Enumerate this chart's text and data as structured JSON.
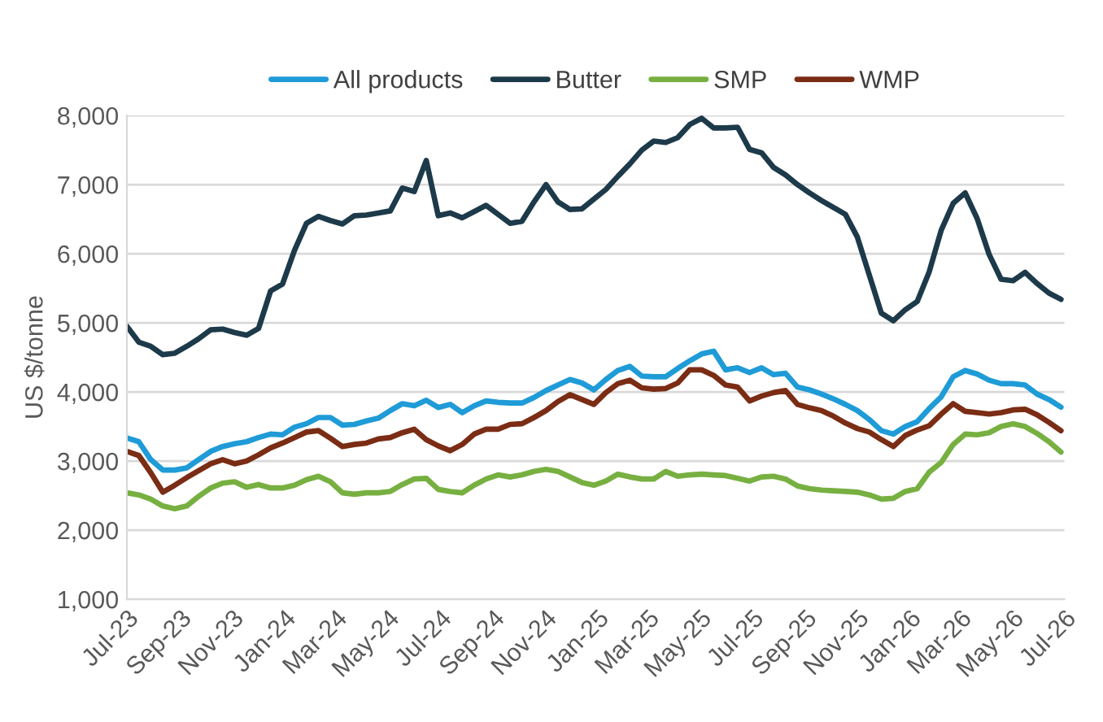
{
  "chart_data": {
    "type": "line",
    "ylabel": "US $/tonne",
    "x": [
      "2023-07-01",
      "2023-07-15",
      "2023-07-29",
      "2023-08-12",
      "2023-08-26",
      "2023-09-09",
      "2023-09-23",
      "2023-10-07",
      "2023-10-21",
      "2023-11-04",
      "2023-11-18",
      "2023-12-02",
      "2023-12-16",
      "2023-12-30",
      "2024-01-13",
      "2024-01-27",
      "2024-02-10",
      "2024-02-24",
      "2024-03-09",
      "2024-03-23",
      "2024-04-06",
      "2024-04-20",
      "2024-05-04",
      "2024-05-18",
      "2024-06-01",
      "2024-06-15",
      "2024-06-29",
      "2024-07-13",
      "2024-07-27",
      "2024-08-10",
      "2024-08-24",
      "2024-09-07",
      "2024-09-21",
      "2024-10-05",
      "2024-10-19",
      "2024-11-02",
      "2024-11-16",
      "2024-11-30",
      "2024-12-14",
      "2024-12-28",
      "2025-01-11",
      "2025-01-25",
      "2025-02-08",
      "2025-02-22",
      "2025-03-08",
      "2025-03-22",
      "2025-04-05",
      "2025-04-19",
      "2025-05-03",
      "2025-05-17",
      "2025-05-31",
      "2025-06-14",
      "2025-06-28",
      "2025-07-12",
      "2025-07-26",
      "2025-08-09",
      "2025-08-23",
      "2025-09-06",
      "2025-09-20",
      "2025-10-04",
      "2025-10-18",
      "2025-11-01",
      "2025-11-15",
      "2025-11-29",
      "2025-12-13",
      "2025-12-27",
      "2026-01-10",
      "2026-01-24",
      "2026-02-07",
      "2026-02-21",
      "2026-03-07",
      "2026-03-21",
      "2026-04-04",
      "2026-04-18",
      "2026-05-02",
      "2026-05-16",
      "2026-05-30",
      "2026-06-13",
      "2026-06-27"
    ],
    "series": [
      {
        "name": "All products",
        "color": "#1f9bd7",
        "values": [
          3335,
          3280,
          3020,
          2870,
          2870,
          2900,
          3020,
          3140,
          3210,
          3250,
          3280,
          3340,
          3390,
          3380,
          3490,
          3540,
          3630,
          3630,
          3520,
          3530,
          3580,
          3620,
          3730,
          3830,
          3800,
          3880,
          3775,
          3820,
          3700,
          3800,
          3870,
          3850,
          3840,
          3840,
          3920,
          4020,
          4100,
          4180,
          4130,
          4030,
          4180,
          4310,
          4370,
          4230,
          4220,
          4220,
          4340,
          4450,
          4550,
          4590,
          4320,
          4350,
          4280,
          4350,
          4250,
          4270,
          4070,
          4030,
          3970,
          3900,
          3820,
          3730,
          3600,
          3440,
          3390,
          3500,
          3570,
          3760,
          3930,
          4220,
          4310,
          4260,
          4170,
          4120,
          4120,
          4100,
          3970,
          3890,
          3780
        ]
      },
      {
        "name": "Butter",
        "color": "#1d3a4a",
        "values": [
          4950,
          4720,
          4660,
          4540,
          4560,
          4660,
          4770,
          4900,
          4910,
          4860,
          4820,
          4920,
          5460,
          5560,
          6050,
          6440,
          6540,
          6480,
          6430,
          6550,
          6560,
          6590,
          6620,
          6950,
          6900,
          7350,
          6550,
          6590,
          6520,
          6610,
          6700,
          6570,
          6440,
          6470,
          6750,
          7000,
          6750,
          6640,
          6650,
          6790,
          6930,
          7120,
          7300,
          7500,
          7630,
          7610,
          7680,
          7870,
          7960,
          7820,
          7820,
          7830,
          7510,
          7460,
          7250,
          7140,
          7000,
          6880,
          6770,
          6670,
          6570,
          6240,
          5690,
          5140,
          5030,
          5190,
          5310,
          5740,
          6340,
          6730,
          6880,
          6510,
          5990,
          5630,
          5610,
          5730,
          5570,
          5430,
          5340
        ]
      },
      {
        "name": "SMP",
        "color": "#77b041",
        "values": [
          2540,
          2510,
          2450,
          2350,
          2310,
          2350,
          2490,
          2610,
          2680,
          2700,
          2620,
          2660,
          2610,
          2610,
          2650,
          2730,
          2780,
          2700,
          2540,
          2520,
          2540,
          2540,
          2560,
          2660,
          2740,
          2750,
          2590,
          2560,
          2540,
          2650,
          2740,
          2800,
          2770,
          2800,
          2850,
          2880,
          2850,
          2770,
          2690,
          2650,
          2710,
          2810,
          2770,
          2740,
          2740,
          2850,
          2780,
          2800,
          2810,
          2800,
          2790,
          2750,
          2710,
          2770,
          2780,
          2740,
          2640,
          2600,
          2580,
          2570,
          2560,
          2550,
          2510,
          2450,
          2460,
          2560,
          2600,
          2840,
          2980,
          3240,
          3390,
          3380,
          3410,
          3500,
          3540,
          3500,
          3400,
          3280,
          3130
        ]
      },
      {
        "name": "WMP",
        "color": "#7b2c14",
        "values": [
          3140,
          3080,
          2830,
          2550,
          2650,
          2760,
          2860,
          2960,
          3020,
          2960,
          3000,
          3090,
          3190,
          3260,
          3340,
          3420,
          3440,
          3330,
          3210,
          3240,
          3260,
          3320,
          3340,
          3410,
          3460,
          3310,
          3220,
          3150,
          3240,
          3390,
          3460,
          3460,
          3530,
          3540,
          3630,
          3730,
          3860,
          3960,
          3890,
          3820,
          3990,
          4120,
          4170,
          4060,
          4040,
          4050,
          4130,
          4320,
          4320,
          4240,
          4100,
          4070,
          3870,
          3940,
          3990,
          4020,
          3820,
          3770,
          3730,
          3650,
          3550,
          3470,
          3420,
          3310,
          3210,
          3370,
          3450,
          3510,
          3680,
          3830,
          3720,
          3700,
          3680,
          3700,
          3740,
          3750,
          3670,
          3560,
          3440
        ]
      }
    ],
    "xlim": [
      "2023-07-01",
      "2026-07-01"
    ],
    "xticks": [
      {
        "value": "2023-07",
        "label": "Jul-23"
      },
      {
        "value": "2023-09",
        "label": "Sep-23"
      },
      {
        "value": "2023-11",
        "label": "Nov-23"
      },
      {
        "value": "2024-01",
        "label": "Jan-24"
      },
      {
        "value": "2024-03",
        "label": "Mar-24"
      },
      {
        "value": "2024-05",
        "label": "May-24"
      },
      {
        "value": "2024-07",
        "label": "Jul-24"
      },
      {
        "value": "2024-09",
        "label": "Sep-24"
      },
      {
        "value": "2024-11",
        "label": "Nov-24"
      },
      {
        "value": "2025-01",
        "label": "Jan-25"
      },
      {
        "value": "2025-03",
        "label": "Mar-25"
      },
      {
        "value": "2025-05",
        "label": "May-25"
      },
      {
        "value": "2025-07",
        "label": "Jul-25"
      },
      {
        "value": "2025-09",
        "label": "Sep-25"
      },
      {
        "value": "2025-11",
        "label": "Nov-25"
      },
      {
        "value": "2026-01",
        "label": "Jan-26"
      },
      {
        "value": "2026-03",
        "label": "Mar-26"
      },
      {
        "value": "2026-05",
        "label": "May-26"
      },
      {
        "value": "2026-07",
        "label": "Jul-26"
      }
    ],
    "ylim": [
      1000,
      8000
    ],
    "yticks": [
      {
        "value": 1000,
        "label": "1,000"
      },
      {
        "value": 2000,
        "label": "2,000"
      },
      {
        "value": 3000,
        "label": "3,000"
      },
      {
        "value": 4000,
        "label": "4,000"
      },
      {
        "value": 5000,
        "label": "5,000"
      },
      {
        "value": 6000,
        "label": "6,000"
      },
      {
        "value": 7000,
        "label": "7,000"
      },
      {
        "value": 8000,
        "label": "8,000"
      }
    ],
    "grid": "y",
    "legend": "top",
    "marker": "none",
    "line_style": "solid"
  }
}
